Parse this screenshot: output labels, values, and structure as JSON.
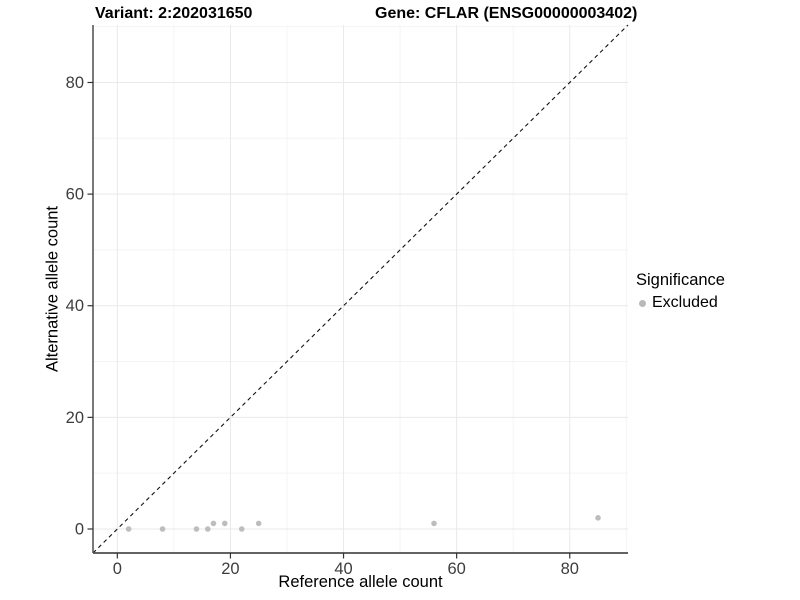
{
  "titles": {
    "variant": "Variant: 2:202031650",
    "gene": "Gene: CFLAR (ENSG00000003402)"
  },
  "legend": {
    "title": "Significance",
    "items": [
      {
        "label": "Excluded",
        "color": "#b9b9b9"
      }
    ]
  },
  "colors": {
    "point": "#bdbdbd",
    "grid_major": "#e9e9e9",
    "grid_minor": "#f4f4f4",
    "axis_line": "#4d4d4d",
    "tick_mark": "#333333",
    "tick_label": "#3d3d3d",
    "reference_line": "#111111",
    "background": "#ffffff"
  },
  "chart_data": {
    "type": "scatter",
    "title": "Variant: 2:202031650   |   Gene: CFLAR (ENSG00000003402)",
    "xlabel": "Reference allele count",
    "ylabel": "Alternative allele count",
    "xlim": [
      -4.3,
      90.3
    ],
    "ylim": [
      -4.3,
      90.3
    ],
    "x_ticks": [
      0,
      20,
      40,
      60,
      80
    ],
    "y_ticks": [
      0,
      20,
      40,
      60,
      80
    ],
    "x_minor_ticks": [
      10,
      30,
      50,
      70,
      90
    ],
    "y_minor_ticks": [
      10,
      30,
      50,
      70,
      90
    ],
    "grid": "major+minor",
    "legend_position": "right",
    "series": [
      {
        "name": "Excluded",
        "color": "#bdbdbd",
        "marker": "circle",
        "points": [
          {
            "x": 2,
            "y": 0
          },
          {
            "x": 8,
            "y": 0
          },
          {
            "x": 14,
            "y": 0
          },
          {
            "x": 16,
            "y": 0
          },
          {
            "x": 17,
            "y": 1
          },
          {
            "x": 19,
            "y": 1
          },
          {
            "x": 22,
            "y": 0
          },
          {
            "x": 25,
            "y": 1
          },
          {
            "x": 56,
            "y": 1
          },
          {
            "x": 85,
            "y": 2
          }
        ]
      }
    ],
    "reference_line": {
      "type": "identity",
      "slope": 1,
      "intercept": 0,
      "style": "dashed"
    }
  }
}
